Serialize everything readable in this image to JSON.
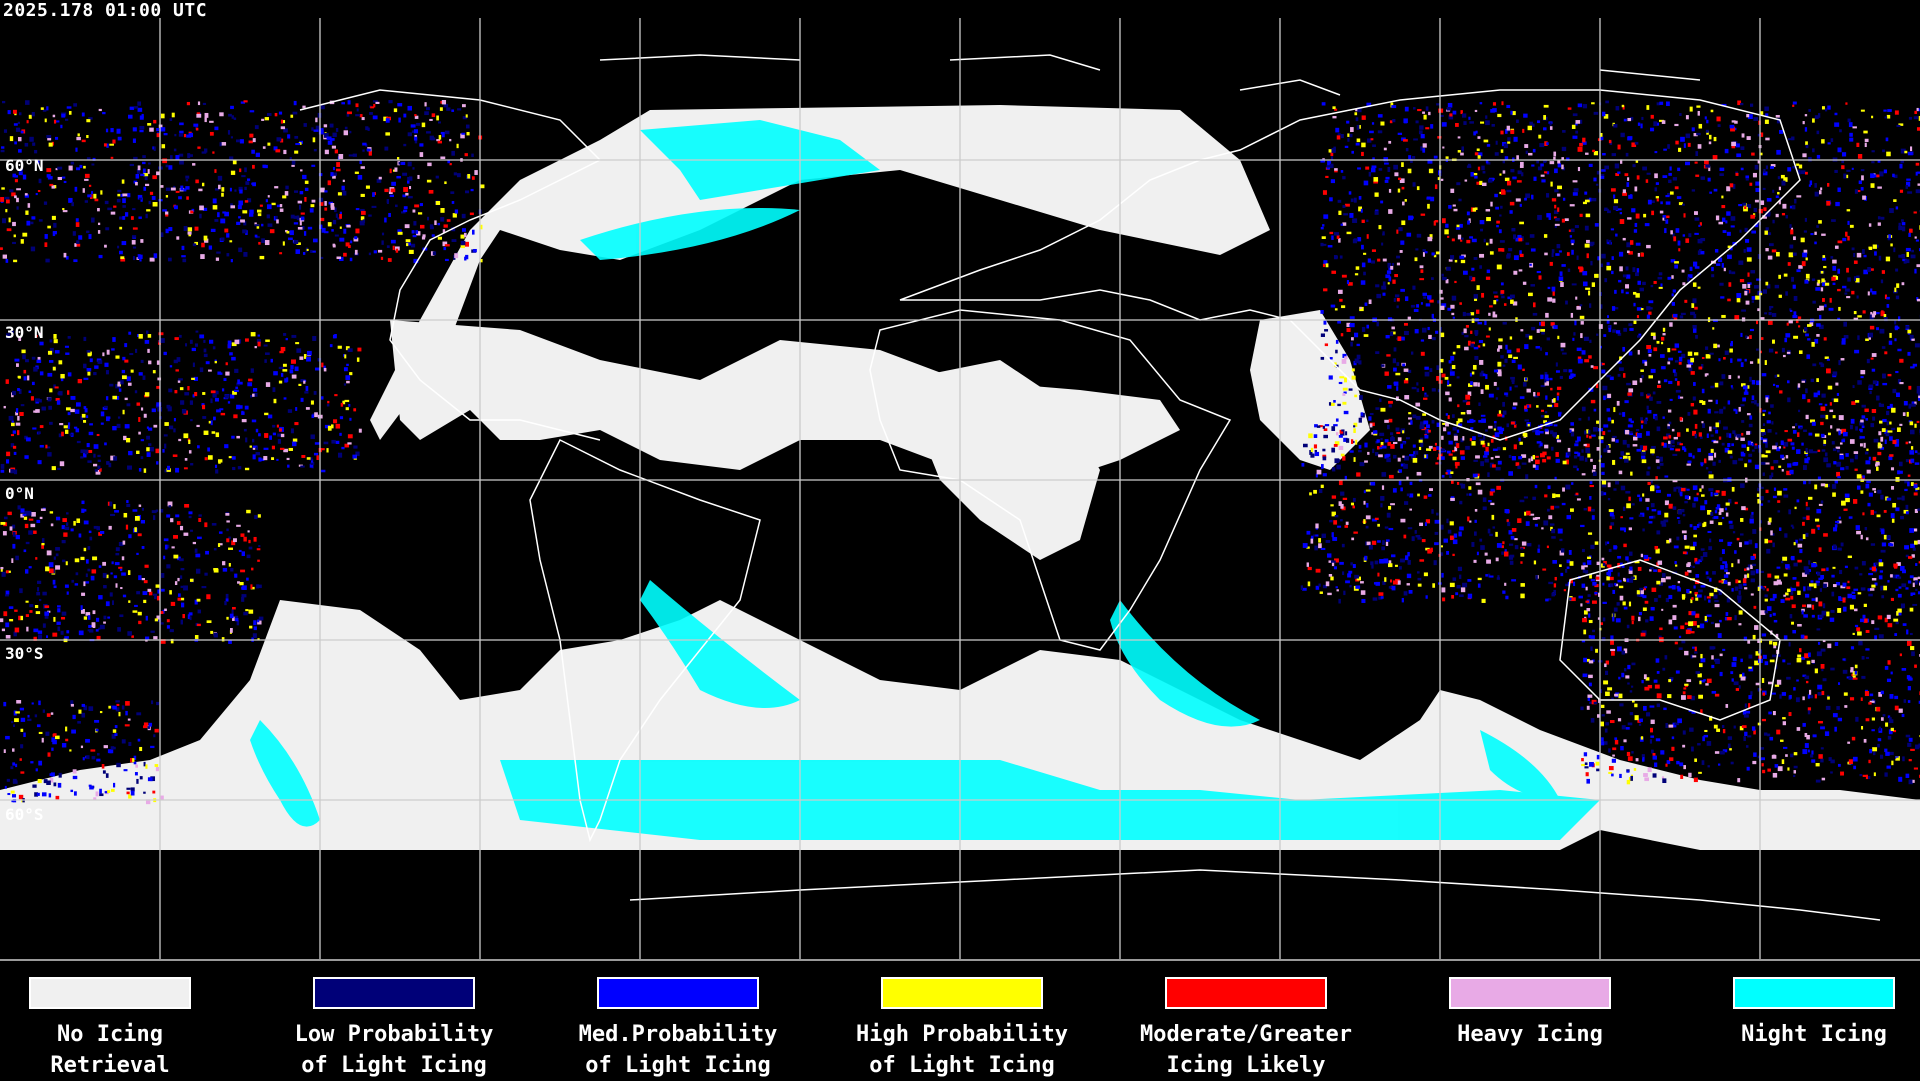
{
  "header": {
    "timestamp": "2025.178 01:00 UTC"
  },
  "map": {
    "projection": "equirectangular global",
    "gridlines": true,
    "lat_labels": [
      "60°N",
      "30°N",
      "0°N",
      "30°S",
      "60°S"
    ],
    "background_color": "#000000",
    "coastline_color": "#ffffff"
  },
  "legend": [
    {
      "line1": "No Icing",
      "line2": "Retrieval",
      "color": "#f0f0f0"
    },
    {
      "line1": "Low Probability",
      "line2": "of Light Icing",
      "color": "#000078"
    },
    {
      "line1": "Med.Probability",
      "line2": "of Light Icing",
      "color": "#0000ff"
    },
    {
      "line1": "High Probability",
      "line2": "of Light Icing",
      "color": "#ffff00"
    },
    {
      "line1": "Moderate/Greater",
      "line2": "Icing Likely",
      "color": "#ff0000"
    },
    {
      "line1": "Heavy Icing",
      "line2": "",
      "color": "#e8aae6"
    },
    {
      "line1": "Night Icing",
      "line2": "",
      "color": "#00ffff"
    }
  ]
}
